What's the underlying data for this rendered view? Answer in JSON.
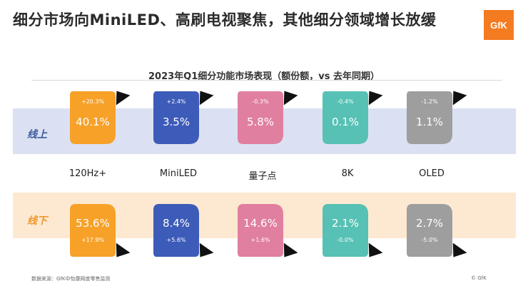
{
  "header": {
    "title": "细分市场向MiniLED、高刷电视聚焦，其他细分领域增长放缓",
    "logo_text": "GfK"
  },
  "chart_data": {
    "type": "table",
    "title": "2023年Q1细分功能市场表现（额份额，vs 去年同期）",
    "categories": [
      "120Hz+",
      "MiniLED",
      "量子点",
      "8K",
      "OLED"
    ],
    "colors": [
      "#f7a128",
      "#3d5bb8",
      "#e07fa0",
      "#56c1b4",
      "#9e9e9e"
    ],
    "rows": [
      {
        "name": "线上",
        "share": [
          "40.1%",
          "3.5%",
          "5.8%",
          "0.1%",
          "1.1%"
        ],
        "change": [
          "+20.3%",
          "+2.4%",
          "-0.3%",
          "-0.4%",
          "-1.2%"
        ]
      },
      {
        "name": "线下",
        "share": [
          "53.6%",
          "8.4%",
          "14.6%",
          "2.1%",
          "2.7%"
        ],
        "change": [
          "+17.9%",
          "+5.6%",
          "+1.6%",
          "-0.0%",
          "-5.0%"
        ]
      }
    ]
  },
  "footer": {
    "source": "数据来源：GfK中怡康网度零售监测",
    "copyright": "© GfK"
  }
}
